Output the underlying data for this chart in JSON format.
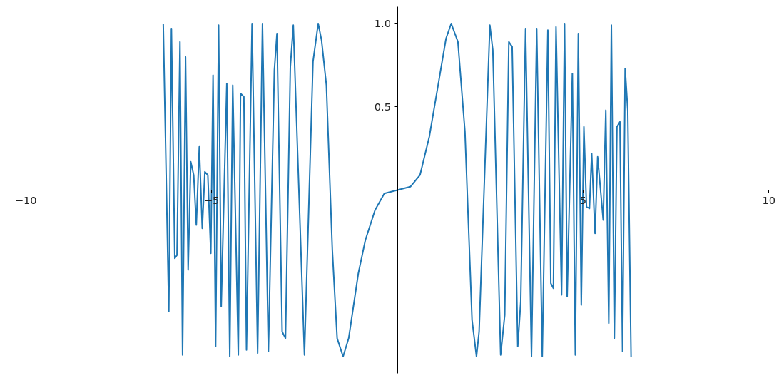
{
  "chart_data": {
    "type": "line",
    "x": [
      -6.3,
      -6.15,
      -6.08,
      -5.99,
      -5.93,
      -5.85,
      -5.78,
      -5.7,
      -5.63,
      -5.56,
      -5.48,
      -5.41,
      -5.33,
      -5.25,
      -5.18,
      -5.1,
      -5.02,
      -4.96,
      -4.89,
      -4.81,
      -4.74,
      -4.59,
      -4.51,
      -4.43,
      -4.28,
      -4.22,
      -4.13,
      -4.06,
      -3.91,
      -3.76,
      -3.63,
      -3.47,
      -3.31,
      -3.24,
      -3.1,
      -3.01,
      -2.88,
      -2.8,
      -2.5,
      -2.27,
      -2.13,
      -2.04,
      -1.91,
      -1.75,
      -1.62,
      -1.46,
      -1.31,
      -1.05,
      -0.86,
      -0.6,
      -0.35,
      0.0,
      0.35,
      0.61,
      0.86,
      1.12,
      1.31,
      1.45,
      1.63,
      1.82,
      2.01,
      2.13,
      2.2,
      2.49,
      2.57,
      2.78,
      2.89,
      3.0,
      3.09,
      3.24,
      3.32,
      3.45,
      3.61,
      3.75,
      3.9,
      4.05,
      4.13,
      4.2,
      4.27,
      4.42,
      4.5,
      4.57,
      4.71,
      4.79,
      4.87,
      4.95,
      5.02,
      5.09,
      5.17,
      5.23,
      5.32,
      5.39,
      5.54,
      5.61,
      5.69,
      5.76,
      5.84,
      5.91,
      5.99,
      6.06,
      6.13,
      6.2,
      6.29
    ],
    "series": [
      {
        "color": "#1f77b4",
        "values": [
          1.0,
          -0.73,
          0.97,
          -0.41,
          -0.39,
          0.89,
          -0.99,
          0.8,
          -0.48,
          0.17,
          0.09,
          -0.21,
          0.26,
          -0.23,
          0.11,
          0.09,
          -0.38,
          0.69,
          -0.94,
          0.99,
          -0.7,
          0.64,
          -1.0,
          0.63,
          -0.99,
          0.58,
          0.56,
          -0.96,
          1.0,
          -0.98,
          1.0,
          -0.97,
          0.72,
          0.94,
          -0.85,
          -0.89,
          0.74,
          0.99,
          -0.99,
          0.77,
          1.0,
          0.9,
          0.63,
          -0.36,
          -0.89,
          -1.0,
          -0.89,
          -0.5,
          -0.3,
          -0.12,
          -0.02,
          0.0,
          0.02,
          0.09,
          0.32,
          0.66,
          0.91,
          1.0,
          0.89,
          0.35,
          -0.78,
          -1.0,
          -0.85,
          0.99,
          0.84,
          -0.99,
          -0.75,
          0.89,
          0.86,
          -0.94,
          -0.67,
          0.97,
          -1.0,
          0.97,
          -1.0,
          0.96,
          -0.56,
          -0.59,
          0.98,
          -0.63,
          1.0,
          -0.64,
          0.7,
          -0.99,
          0.94,
          -0.69,
          0.38,
          -0.1,
          -0.11,
          0.22,
          -0.26,
          0.2,
          -0.18,
          0.48,
          -0.8,
          0.99,
          -0.89,
          0.38,
          0.41,
          -0.97,
          0.73,
          0.48,
          -1.0
        ]
      }
    ],
    "xlim": [
      -10,
      10
    ],
    "ylim": [
      -1.1,
      1.1
    ],
    "xticks": [
      {
        "value": -10,
        "label": "−10"
      },
      {
        "value": -5,
        "label": "−5"
      },
      {
        "value": 5,
        "label": "5"
      },
      {
        "value": 10,
        "label": "10"
      }
    ],
    "yticks": [
      {
        "value": 0.5,
        "label": "0.5"
      },
      {
        "value": 1.0,
        "label": "1.0"
      }
    ],
    "grid": false
  }
}
